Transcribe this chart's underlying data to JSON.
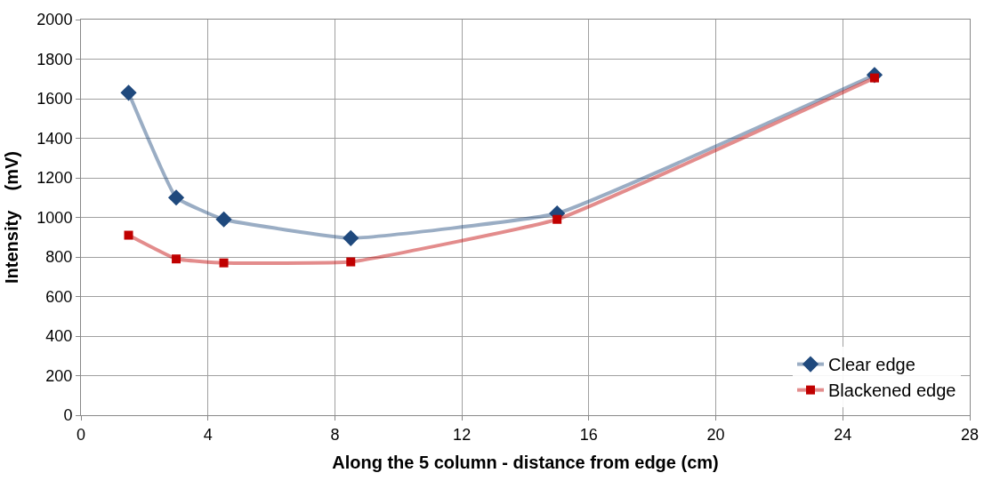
{
  "chart_data": {
    "type": "line",
    "xlabel": "Along the 5 column - distance from edge (cm)",
    "ylabel": "Intensity    (mV)",
    "x": [
      1.5,
      3,
      4.5,
      8.5,
      15,
      25
    ],
    "series": [
      {
        "name": "Clear edge",
        "color": "#1f497d",
        "values": [
          1630,
          1100,
          990,
          895,
          1020,
          1720
        ],
        "marker": "diamond"
      },
      {
        "name": "Blackened edge",
        "color": "#c00000",
        "values": [
          910,
          790,
          770,
          775,
          990,
          1705
        ],
        "marker": "square"
      }
    ],
    "xlim": [
      0,
      28
    ],
    "xticks": [
      0,
      4,
      8,
      12,
      16,
      20,
      24,
      28
    ],
    "ylim": [
      0,
      2000
    ],
    "yticks": [
      0,
      200,
      400,
      600,
      800,
      1000,
      1200,
      1400,
      1600,
      1800,
      2000
    ],
    "grid": true,
    "legend": "bottom right",
    "line_style": "solid"
  }
}
